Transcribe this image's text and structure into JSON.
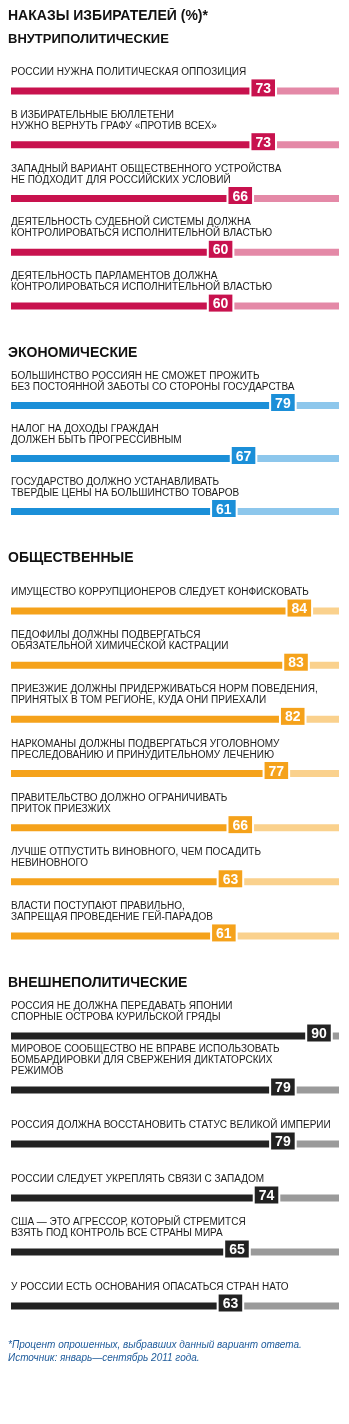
{
  "chart_data": [
    {
      "type": "bar",
      "orientation": "horizontal",
      "stacked": true,
      "title": "НАКАЗЫ ИЗБИРАТЕЛЕЙ (%)*",
      "subtitle": "ВНУТРИПОЛИТИЧЕСКИЕ",
      "xlim": [
        0,
        100
      ],
      "categories": [
        "РОССИИ НУЖНА ПОЛИТИЧЕСКАЯ ОППОЗИЦИЯ",
        "В ИЗБИРАТЕЛЬНЫЕ БЮЛЛЕТЕНИ\nНУЖНО ВЕРНУТЬ ГРАФУ «ПРОТИВ ВСЕХ»",
        "ЗАПАДНЫЙ ВАРИАНТ ОБЩЕСТВЕННОГО УСТРОЙСТВА\nНЕ ПОДХОДИТ ДЛЯ РОССИЙСКИХ УСЛОВИЙ",
        "ДЕЯТЕЛЬНОСТЬ СУДЕБНОЙ СИСТЕМЫ ДОЛЖНА\nКОНТРОЛИРОВАТЬСЯ ИСПОЛНИТЕЛЬНОЙ ВЛАСТЬЮ",
        "ДЕЯТЕЛЬНОСТЬ ПАРЛАМЕНТОВ ДОЛЖНА\nКОНТРОЛИРОВАТЬСЯ ИСПОЛНИТЕЛЬНОЙ ВЛАСТЬЮ"
      ],
      "series": [
        {
          "color": "#c8124e",
          "values": [
            73,
            73,
            66,
            60,
            60
          ],
          "value_labels": [
            "73",
            "73",
            "66",
            "60",
            "60"
          ]
        },
        {
          "color": "#e489a7",
          "values": [
            27,
            27,
            34,
            40,
            40
          ]
        }
      ]
    },
    {
      "type": "bar",
      "orientation": "horizontal",
      "stacked": true,
      "title": "ЭКОНОМИЧЕСКИЕ",
      "xlim": [
        0,
        100
      ],
      "categories": [
        "БОЛЬШИНСТВО РОССИЯН НЕ СМОЖЕТ ПРОЖИТЬ\nБЕЗ ПОСТОЯННОЙ ЗАБОТЫ СО СТОРОНЫ ГОСУДАРСТВА",
        "НАЛОГ НА ДОХОДЫ ГРАЖДАН\nДОЛЖЕН БЫТЬ ПРОГРЕССИВНЫМ",
        "ГОСУДАРСТВО ДОЛЖНО УСТАНАВЛИВАТЬ\nТВЕРДЫЕ ЦЕНЫ НА БОЛЬШИНСТВО ТОВАРОВ"
      ],
      "series": [
        {
          "color": "#1b8fd8",
          "values": [
            79,
            67,
            61
          ],
          "value_labels": [
            "79",
            "67",
            "61"
          ]
        },
        {
          "color": "#8dc7ec",
          "values": [
            21,
            33,
            39
          ]
        }
      ]
    },
    {
      "type": "bar",
      "orientation": "horizontal",
      "stacked": true,
      "title": "ОБЩЕСТВЕННЫЕ",
      "xlim": [
        0,
        100
      ],
      "categories": [
        "ИМУЩЕСТВО КОРРУПЦИОНЕРОВ СЛЕДУЕТ КОНФИСКОВАТЬ",
        "ПЕДОФИЛЫ ДОЛЖНЫ ПОДВЕРГАТЬСЯ\nОБЯЗАТЕЛЬНОЙ ХИМИЧЕСКОЙ КАСТРАЦИИ",
        "ПРИЕЗЖИЕ ДОЛЖНЫ ПРИДЕРЖИВАТЬСЯ НОРМ ПОВЕДЕНИЯ,\nПРИНЯТЫХ В ТОМ РЕГИОНЕ, КУДА ОНИ ПРИЕХАЛИ",
        "НАРКОМАНЫ ДОЛЖНЫ ПОДВЕРГАТЬСЯ УГОЛОВНОМУ\nПРЕСЛЕДОВАНИЮ И ПРИНУДИТЕЛЬНОМУ ЛЕЧЕНИЮ",
        "ПРАВИТЕЛЬСТВО ДОЛЖНО ОГРАНИЧИВАТЬ\nПРИТОК ПРИЕЗЖИХ",
        "ЛУЧШЕ ОТПУСТИТЬ ВИНОВНОГО, ЧЕМ ПОСАДИТЬ\nНЕВИНОВНОГО",
        "ВЛАСТИ ПОСТУПАЮТ ПРАВИЛЬНО,\nЗАПРЕЩАЯ ПРОВЕДЕНИЕ ГЕЙ-ПАРАДОВ"
      ],
      "series": [
        {
          "color": "#f5a21b",
          "values": [
            84,
            83,
            82,
            77,
            66,
            63,
            61
          ],
          "value_labels": [
            "84",
            "83",
            "82",
            "77",
            "66",
            "63",
            "61"
          ]
        },
        {
          "color": "#fad18d",
          "values": [
            16,
            17,
            18,
            23,
            34,
            37,
            39
          ]
        }
      ]
    },
    {
      "type": "bar",
      "orientation": "horizontal",
      "stacked": true,
      "title": "ВНЕШНЕПОЛИТИЧЕСКИЕ",
      "xlim": [
        0,
        100
      ],
      "categories": [
        "РОССИЯ НЕ ДОЛЖНА ПЕРЕДАВАТЬ ЯПОНИИ\nСПОРНЫЕ ОСТРОВА КУРИЛЬСКОЙ ГРЯДЫ",
        "МИРОВОЕ СООБЩЕСТВО НЕ ВПРАВЕ ИСПОЛЬЗОВАТЬ\nБОМБАРДИРОВКИ ДЛЯ СВЕРЖЕНИЯ ДИКТАТОРСКИХ\nРЕЖИМОВ",
        "РОССИЯ ДОЛЖНА ВОССТАНОВИТЬ СТАТУС ВЕЛИКОЙ ИМПЕРИИ",
        "РОССИИ СЛЕДУЕТ УКРЕПЛЯТЬ СВЯЗИ С ЗАПАДОМ",
        "США — ЭТО АГРЕССОР, КОТОРЫЙ СТРЕМИТСЯ\nВЗЯТЬ ПОД КОНТРОЛЬ ВСЕ СТРАНЫ МИРА",
        "У РОССИИ ЕСТЬ ОСНОВАНИЯ ОПАСАТЬСЯ СТРАН НАТО"
      ],
      "series": [
        {
          "color": "#222222",
          "values": [
            90,
            79,
            79,
            74,
            65,
            63
          ],
          "value_labels": [
            "90",
            "79",
            "79",
            "74",
            "65",
            "63"
          ]
        },
        {
          "color": "#9a9a9a",
          "values": [
            10,
            21,
            21,
            26,
            35,
            37
          ]
        }
      ],
      "annotations": [
        "*Процент опрошенных, выбравших данный вариант ответа.",
        "Источник: январь—сентябрь 2011 года."
      ]
    }
  ]
}
